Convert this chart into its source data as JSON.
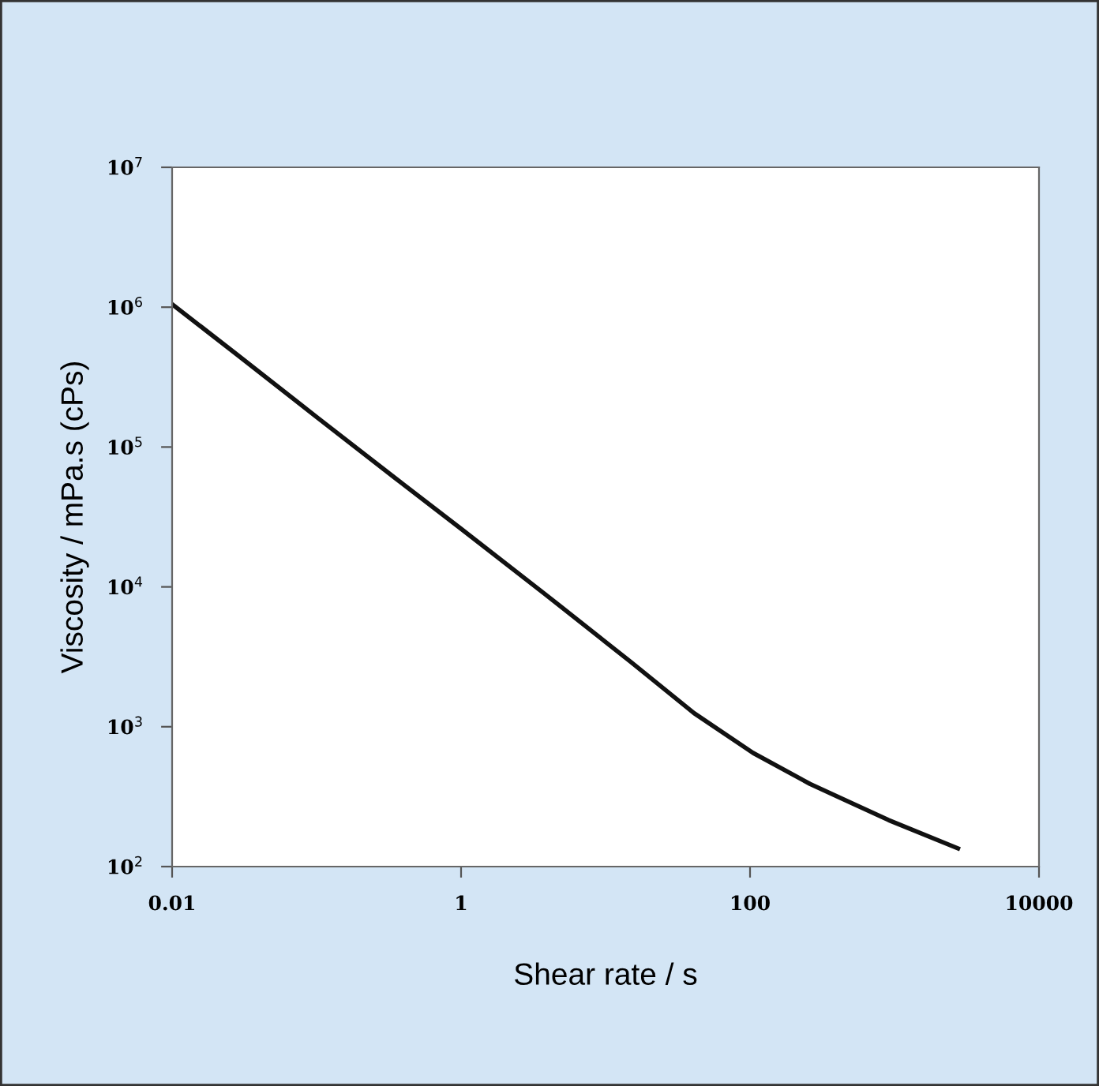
{
  "chart_data": {
    "type": "line",
    "xlabel": "Shear rate / s",
    "ylabel": "Viscosity / mPa.s (cPs)",
    "log": "xy",
    "x": [
      0.01,
      0.028,
      0.1,
      0.35,
      1,
      3.8,
      15,
      41,
      105,
      260,
      910,
      2750
    ],
    "series": [
      {
        "color": "#111111",
        "values": [
          1050000,
          460000,
          164000,
          60000,
          26000,
          8900,
          2900,
          1250,
          650,
          390,
          215,
          135
        ]
      }
    ],
    "xlim": [
      0.01,
      10000
    ],
    "xticks": [
      0.01,
      1,
      100,
      10000
    ],
    "ylim": [
      100,
      10000000
    ],
    "yticks": [
      {
        "value": 100,
        "label": "10$^{2}$"
      },
      {
        "value": 1000,
        "label": "10$^{3}$"
      },
      {
        "value": 10000,
        "label": "10$^{4}$"
      },
      {
        "value": 100000,
        "label": "10$^{5}$"
      },
      {
        "value": 1000000,
        "label": "10$^{6}$"
      },
      {
        "value": 10000000,
        "label": "10$^{7}$"
      }
    ],
    "grid": false,
    "legend": false,
    "marker": "none",
    "line_style": "solid"
  }
}
